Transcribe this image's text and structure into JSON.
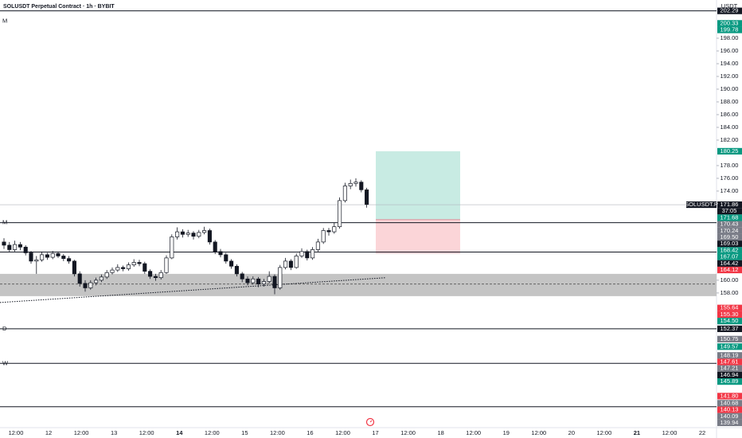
{
  "chart_data": {
    "type": "candlestick",
    "title": "SOLUSDT Perpetual Contract · 1h · BYBIT",
    "currency": "USDT",
    "symbol": "SOLUSDT.P",
    "last_price": 171.86,
    "countdown": "37:05",
    "ylim": [
      137.1,
      203
    ],
    "yticks": [
      {
        "value": 198,
        "label": "198.00"
      },
      {
        "value": 196,
        "label": "196.00"
      },
      {
        "value": 194,
        "label": "194.00"
      },
      {
        "value": 192,
        "label": "192.00"
      },
      {
        "value": 190,
        "label": "190.00"
      },
      {
        "value": 188,
        "label": "188.00"
      },
      {
        "value": 186,
        "label": "186.00"
      },
      {
        "value": 184,
        "label": "184.00"
      },
      {
        "value": 182,
        "label": "182.00"
      },
      {
        "value": 178,
        "label": "178.00"
      },
      {
        "value": 176,
        "label": "176.00"
      },
      {
        "value": 174,
        "label": "174.00"
      },
      {
        "value": 160,
        "label": "160.00"
      },
      {
        "value": 158,
        "label": "158.00"
      }
    ],
    "xticks": [
      "12:00",
      "12",
      "12:00",
      "13",
      "12:00",
      "14",
      "12:00",
      "15",
      "12:00",
      "16",
      "12:00",
      "17",
      "12:00",
      "18",
      "12:00",
      "19",
      "12:00",
      "20",
      "12:00",
      "21",
      "12:00",
      "22"
    ],
    "bold_xticks": [
      "14",
      "21"
    ],
    "up_color": "#ffffff",
    "down_color": "#131722",
    "candles": [
      [
        166.0,
        166.6,
        164.9,
        165.5
      ],
      [
        165.5,
        166.0,
        164.4,
        164.8
      ],
      [
        164.8,
        166.2,
        164.5,
        165.6
      ],
      [
        165.6,
        166.0,
        164.7,
        165.2
      ],
      [
        165.2,
        165.5,
        163.9,
        164.3
      ],
      [
        164.3,
        164.6,
        162.6,
        163.0
      ],
      [
        163.0,
        163.8,
        161.0,
        163.2
      ],
      [
        163.2,
        164.5,
        162.9,
        164.0
      ],
      [
        164.0,
        164.3,
        163.2,
        163.6
      ],
      [
        163.6,
        164.6,
        163.3,
        164.2
      ],
      [
        164.2,
        164.5,
        163.5,
        163.8
      ],
      [
        163.8,
        164.1,
        163.0,
        163.4
      ],
      [
        163.4,
        163.8,
        162.6,
        163.0
      ],
      [
        163.0,
        163.2,
        160.6,
        161.0
      ],
      [
        161.0,
        161.4,
        159.0,
        159.5
      ],
      [
        159.5,
        160.0,
        158.2,
        158.8
      ],
      [
        158.8,
        160.0,
        158.5,
        159.6
      ],
      [
        159.6,
        160.4,
        159.2,
        160.0
      ],
      [
        160.0,
        160.9,
        159.7,
        160.5
      ],
      [
        160.5,
        161.6,
        160.2,
        161.2
      ],
      [
        161.2,
        162.0,
        160.9,
        161.6
      ],
      [
        161.6,
        162.5,
        161.3,
        162.0
      ],
      [
        162.0,
        162.3,
        161.4,
        161.8
      ],
      [
        161.8,
        162.8,
        161.5,
        162.4
      ],
      [
        162.4,
        163.3,
        162.1,
        162.8
      ],
      [
        162.8,
        163.2,
        162.2,
        162.6
      ],
      [
        162.6,
        162.9,
        161.0,
        161.4
      ],
      [
        161.4,
        161.7,
        160.2,
        160.6
      ],
      [
        160.6,
        161.0,
        159.9,
        160.4
      ],
      [
        160.4,
        161.6,
        160.1,
        161.2
      ],
      [
        161.2,
        163.9,
        161.0,
        163.5
      ],
      [
        163.5,
        167.2,
        163.3,
        166.8
      ],
      [
        166.8,
        168.3,
        166.4,
        167.6
      ],
      [
        167.6,
        168.0,
        166.7,
        167.2
      ],
      [
        167.2,
        167.9,
        166.8,
        167.4
      ],
      [
        167.4,
        167.7,
        166.4,
        166.9
      ],
      [
        166.9,
        167.9,
        166.6,
        167.5
      ],
      [
        167.5,
        168.4,
        167.2,
        167.8
      ],
      [
        167.8,
        168.1,
        165.6,
        166.0
      ],
      [
        166.0,
        166.3,
        164.1,
        164.5
      ],
      [
        164.5,
        164.9,
        163.6,
        164.0
      ],
      [
        164.0,
        164.3,
        162.6,
        163.0
      ],
      [
        163.0,
        163.3,
        161.8,
        162.2
      ],
      [
        162.2,
        162.5,
        160.6,
        161.0
      ],
      [
        161.0,
        161.3,
        159.7,
        160.2
      ],
      [
        160.2,
        160.6,
        159.2,
        159.6
      ],
      [
        159.6,
        160.6,
        159.3,
        160.2
      ],
      [
        160.2,
        160.5,
        158.9,
        159.4
      ],
      [
        159.4,
        160.2,
        159.0,
        159.8
      ],
      [
        159.8,
        161.4,
        159.5,
        160.6
      ],
      [
        160.6,
        160.9,
        157.8,
        158.8
      ],
      [
        158.8,
        162.4,
        158.5,
        162.0
      ],
      [
        162.0,
        163.5,
        161.7,
        163.0
      ],
      [
        163.0,
        163.3,
        161.6,
        162.0
      ],
      [
        162.0,
        164.2,
        161.8,
        163.8
      ],
      [
        163.8,
        165.0,
        163.5,
        164.5
      ],
      [
        164.5,
        164.8,
        163.1,
        163.5
      ],
      [
        163.5,
        165.2,
        163.2,
        164.8
      ],
      [
        164.8,
        166.5,
        164.5,
        166.0
      ],
      [
        166.0,
        168.2,
        165.7,
        167.8
      ],
      [
        167.8,
        168.2,
        167.0,
        167.6
      ],
      [
        167.6,
        169.0,
        167.3,
        168.4
      ],
      [
        168.4,
        173.0,
        168.1,
        172.5
      ],
      [
        172.5,
        175.3,
        172.2,
        174.8
      ],
      [
        174.8,
        175.8,
        174.3,
        175.2
      ],
      [
        175.2,
        176.0,
        174.7,
        175.4
      ],
      [
        175.4,
        175.7,
        173.8,
        174.2
      ],
      [
        174.2,
        174.5,
        171.4,
        171.9
      ]
    ],
    "levels": [
      {
        "price": 202.29,
        "label": "M"
      },
      {
        "price": 169.03,
        "label": "M"
      },
      {
        "price": 164.42
      },
      {
        "price": 152.37,
        "label": "D"
      },
      {
        "price": 146.94,
        "label": "W"
      },
      {
        "price": 140.13
      }
    ],
    "zone": {
      "top": 161.0,
      "bottom": 157.5,
      "mid": 159.4
    },
    "trendline": {
      "start": 156.5,
      "end": 160.4
    },
    "position": {
      "target": 180.25,
      "entry": 169.5,
      "stop": 164.12,
      "target_color": "#c8ebe3",
      "stop_color": "#fbd5d8"
    },
    "price_labels": [
      {
        "value": 202.29,
        "color": "#131722"
      },
      {
        "value": 200.33,
        "color": "#089981"
      },
      {
        "value": 199.78,
        "color": "#089981"
      },
      {
        "value": 180.25,
        "color": "#089981"
      },
      {
        "value": 171.86,
        "color": "#131722"
      },
      {
        "value": 171.68,
        "color": "#089981"
      },
      {
        "value": 170.43,
        "color": "#787b86"
      },
      {
        "value": 170.24,
        "color": "#787b86"
      },
      {
        "value": 169.5,
        "label": "169.50",
        "color": "#787b86"
      },
      {
        "value": 169.03,
        "color": "#131722"
      },
      {
        "value": 168.42,
        "color": "#089981"
      },
      {
        "value": 167.07,
        "color": "#089981"
      },
      {
        "value": 164.42,
        "color": "#131722"
      },
      {
        "value": 164.12,
        "color": "#f23645"
      },
      {
        "value": 155.64,
        "color": "#f23645"
      },
      {
        "value": 155.3,
        "label": "155.30",
        "color": "#f23645"
      },
      {
        "value": 154.5,
        "label": "154.50",
        "color": "#089981"
      },
      {
        "value": 152.37,
        "color": "#131722"
      },
      {
        "value": 150.75,
        "color": "#787b86"
      },
      {
        "value": 149.57,
        "color": "#089981"
      },
      {
        "value": 148.19,
        "color": "#787b86"
      },
      {
        "value": 147.61,
        "color": "#f23645"
      },
      {
        "value": 147.21,
        "color": "#787b86"
      },
      {
        "value": 146.94,
        "color": "#131722"
      },
      {
        "value": 145.89,
        "color": "#089981"
      },
      {
        "value": 141.8,
        "label": "141.80",
        "color": "#f23645"
      },
      {
        "value": 140.68,
        "color": "#787b86"
      },
      {
        "value": 140.13,
        "color": "#f23645"
      },
      {
        "value": 140.09,
        "color": "#787b86"
      },
      {
        "value": 139.94,
        "color": "#787b86"
      }
    ]
  }
}
